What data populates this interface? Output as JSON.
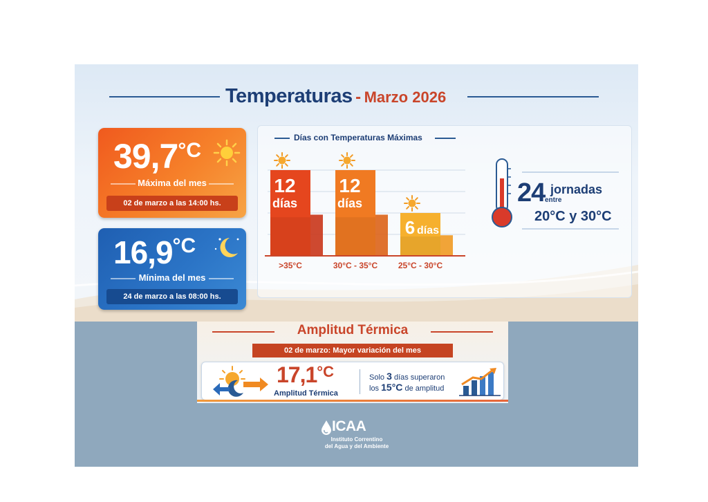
{
  "header": {
    "title": "Temperaturas",
    "separator": "-",
    "subtitle": "Marzo 2026"
  },
  "max_card": {
    "value": "39,7",
    "unit": "°C",
    "label": "Máxima del mes",
    "date": "02 de marzo a las 14:00 hs.",
    "icon": "sun-icon"
  },
  "min_card": {
    "value": "16,9",
    "unit": "°C",
    "label": "Mínima del mes",
    "date": "24 de marzo a las 08:00 hs.",
    "icon": "moon-icon"
  },
  "chart_data": {
    "type": "bar",
    "title": "Días con Temperaturas Máximas",
    "categories": [
      ">35°C",
      "30°C - 35°C",
      "25°C - 30°C"
    ],
    "values": [
      12,
      12,
      6
    ],
    "data_labels": [
      {
        "num": "12",
        "word": "días"
      },
      {
        "num": "12",
        "word": "días"
      },
      {
        "num": "6",
        "word": "días"
      }
    ],
    "colors": [
      "#e5461e",
      "#f07a22",
      "#f6b02e"
    ],
    "grid": true
  },
  "thermo": {
    "count": "24",
    "word": "jornadas",
    "between": "entre",
    "range": "20°C y 30°C",
    "icon": "thermometer-icon"
  },
  "amplitud": {
    "title": "Amplitud Térmica",
    "ribbon": "02 de marzo: Mayor variación del mes",
    "value": "17,1",
    "unit": "°C",
    "value_label": "Amplitud Térmica",
    "fact_pre": "Solo",
    "fact_num": "3",
    "fact_post": "días superaron",
    "fact2_pre": "los",
    "fact2_num": "15°C",
    "fact2_post": "de amplitud"
  },
  "logo": {
    "name": "ICAA",
    "line1": "Instituto Correntino",
    "line2": "del Agua y del Ambiente"
  },
  "colors": {
    "navy": "#1d3e75",
    "orange": "#f05a1e",
    "blue": "#2b74c6",
    "red_title": "#c9452a"
  }
}
